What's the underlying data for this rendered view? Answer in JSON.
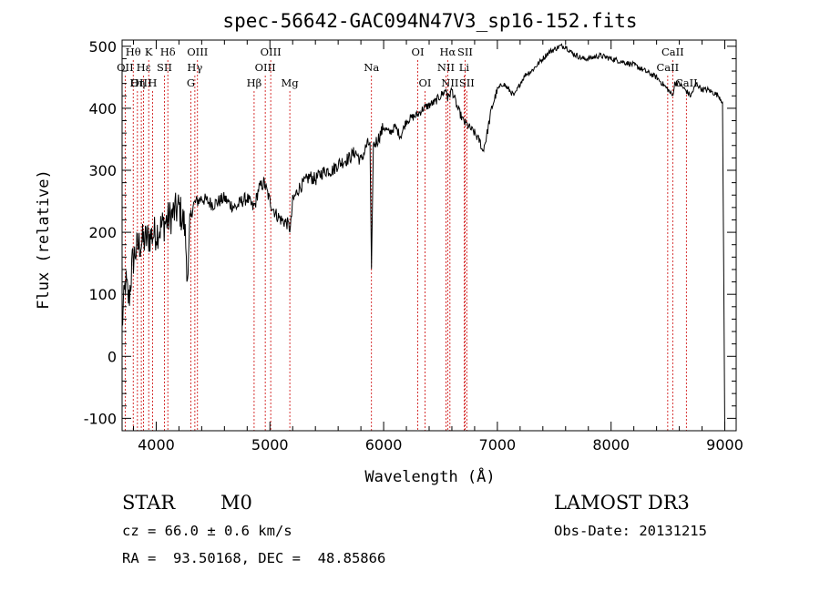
{
  "chart_data": {
    "type": "line",
    "title": "spec-56642-GAC094N47V3_sp16-152.fits",
    "xlabel": "Wavelength (Å)",
    "ylabel": "Flux (relative)",
    "xlim": [
      3700,
      9100
    ],
    "ylim": [
      -120,
      510
    ],
    "xticks": [
      4000,
      5000,
      6000,
      7000,
      8000,
      9000
    ],
    "yticks": [
      -100,
      0,
      100,
      200,
      300,
      400,
      500
    ],
    "grid": false,
    "series": [
      {
        "name": "spectrum",
        "x": [
          3700,
          3730,
          3760,
          3790,
          3820,
          3850,
          3880,
          3920,
          3960,
          4000,
          4050,
          4100,
          4150,
          4200,
          4250,
          4280,
          4300,
          4330,
          4360,
          4400,
          4450,
          4500,
          4550,
          4600,
          4650,
          4700,
          4750,
          4800,
          4850,
          4870,
          4900,
          4950,
          5000,
          5050,
          5100,
          5150,
          5180,
          5200,
          5250,
          5300,
          5350,
          5400,
          5450,
          5500,
          5550,
          5600,
          5650,
          5700,
          5750,
          5800,
          5850,
          5880,
          5893,
          5910,
          5950,
          6000,
          6050,
          6100,
          6150,
          6200,
          6250,
          6300,
          6350,
          6400,
          6450,
          6500,
          6550,
          6563,
          6600,
          6650,
          6700,
          6750,
          6800,
          6850,
          6870,
          6900,
          6950,
          7000,
          7050,
          7100,
          7150,
          7200,
          7250,
          7300,
          7350,
          7400,
          7450,
          7500,
          7550,
          7600,
          7650,
          7700,
          7750,
          7800,
          7900,
          8000,
          8100,
          8200,
          8300,
          8400,
          8450,
          8500,
          8540,
          8560,
          8600,
          8650,
          8700,
          8750,
          8800,
          8850,
          8900,
          8950,
          8980,
          9000
        ],
        "y": [
          50,
          120,
          90,
          150,
          170,
          180,
          185,
          190,
          195,
          200,
          210,
          220,
          230,
          240,
          210,
          120,
          225,
          245,
          250,
          255,
          250,
          245,
          250,
          255,
          245,
          240,
          250,
          255,
          240,
          245,
          270,
          280,
          250,
          230,
          220,
          215,
          205,
          250,
          270,
          280,
          290,
          285,
          295,
          300,
          300,
          310,
          315,
          320,
          330,
          315,
          340,
          345,
          140,
          340,
          350,
          370,
          360,
          370,
          355,
          380,
          385,
          390,
          400,
          405,
          410,
          420,
          430,
          415,
          430,
          400,
          380,
          370,
          360,
          345,
          330,
          350,
          400,
          430,
          440,
          430,
          420,
          440,
          455,
          460,
          470,
          480,
          490,
          495,
          500,
          500,
          490,
          485,
          480,
          480,
          485,
          480,
          475,
          470,
          460,
          450,
          440,
          430,
          420,
          440,
          440,
          430,
          420,
          440,
          430,
          430,
          425,
          420,
          410,
          -120
        ]
      }
    ],
    "spectral_lines": [
      {
        "label": "Hθ",
        "wavelength": 3798,
        "row": 1
      },
      {
        "label": "OII",
        "wavelength": 3727,
        "row": 2
      },
      {
        "label": "OIII",
        "wavelength": 3869,
        "row": 3
      },
      {
        "label": "K",
        "wavelength": 3934,
        "row": 1
      },
      {
        "label": "Hε",
        "wavelength": 3889,
        "row": 2
      },
      {
        "label": "Hη",
        "wavelength": 3835,
        "row": 3
      },
      {
        "label": "SII",
        "wavelength": 4072,
        "row": 2
      },
      {
        "label": "H",
        "wavelength": 3968,
        "row": 3
      },
      {
        "label": "Hδ",
        "wavelength": 4102,
        "row": 1
      },
      {
        "label": "OIII",
        "wavelength": 4363,
        "row": 1
      },
      {
        "label": "Hγ",
        "wavelength": 4340,
        "row": 2
      },
      {
        "label": "G",
        "wavelength": 4305,
        "row": 3
      },
      {
        "label": "Hβ",
        "wavelength": 4861,
        "row": 3
      },
      {
        "label": "OIII",
        "wavelength": 5007,
        "row": 1
      },
      {
        "label": "OIII",
        "wavelength": 4959,
        "row": 2
      },
      {
        "label": "Mg",
        "wavelength": 5175,
        "row": 3
      },
      {
        "label": "Na",
        "wavelength": 5893,
        "row": 2
      },
      {
        "label": "OI",
        "wavelength": 6300,
        "row": 1
      },
      {
        "label": "OI",
        "wavelength": 6364,
        "row": 3
      },
      {
        "label": "Hα",
        "wavelength": 6563,
        "row": 1
      },
      {
        "label": "SII",
        "wavelength": 6716,
        "row": 1
      },
      {
        "label": "NII",
        "wavelength": 6548,
        "row": 2
      },
      {
        "label": "Li",
        "wavelength": 6708,
        "row": 2
      },
      {
        "label": "NII",
        "wavelength": 6583,
        "row": 3
      },
      {
        "label": "SII",
        "wavelength": 6731,
        "row": 3
      },
      {
        "label": "CaII",
        "wavelength": 8542,
        "row": 1
      },
      {
        "label": "CaII",
        "wavelength": 8498,
        "row": 2
      },
      {
        "label": "CaII",
        "wavelength": 8662,
        "row": 3
      }
    ]
  },
  "info": {
    "object_class": "STAR",
    "subclass": "M0",
    "survey": "LAMOST DR3",
    "redshift": "cz = 66.0 ± 0.6 km/s",
    "obs_date": "Obs-Date: 20131215",
    "coords": "RA =  93.50168, DEC =  48.85866"
  }
}
